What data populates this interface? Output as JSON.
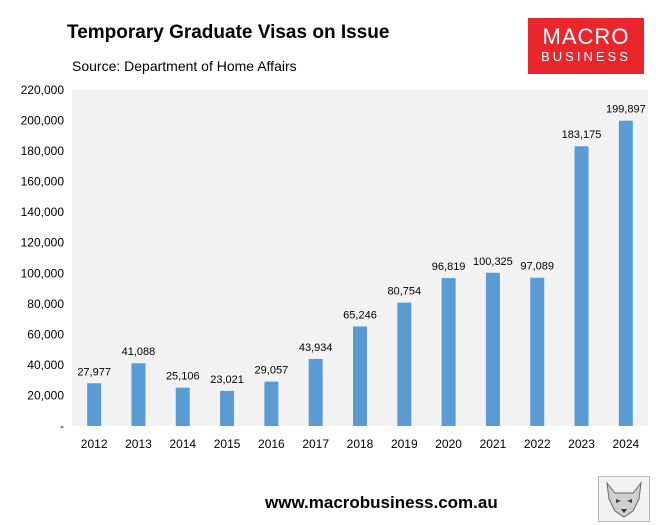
{
  "header": {
    "title": "Temporary Graduate Visas on Issue",
    "source": "Source: Department of Home Affairs"
  },
  "logo": {
    "line1": "MACRO",
    "line2": "BUSINESS",
    "color": "#e8262c"
  },
  "footer": {
    "url": "www.macrobusiness.com.au"
  },
  "chart_data": {
    "type": "bar",
    "categories": [
      "2012",
      "2013",
      "2014",
      "2015",
      "2016",
      "2017",
      "2018",
      "2019",
      "2020",
      "2021",
      "2022",
      "2023",
      "2024"
    ],
    "values": [
      27977,
      41088,
      25106,
      23021,
      29057,
      43934,
      65246,
      80754,
      96819,
      100325,
      97089,
      183175,
      199897
    ],
    "data_labels": [
      "27,977",
      "41,088",
      "25,106",
      "23,021",
      "29,057",
      "43,934",
      "65,246",
      "80,754",
      "96,819",
      "100,325",
      "97,089",
      "183,175",
      "199,897"
    ],
    "y_tick_labels": [
      "-",
      "20,000",
      "40,000",
      "60,000",
      "80,000",
      "100,000",
      "120,000",
      "140,000",
      "160,000",
      "180,000",
      "200,000",
      "220,000"
    ],
    "ylim": [
      0,
      220000
    ],
    "bar_color": "#5b9bd5",
    "plot_background": "#f2f2f2",
    "grid": false
  }
}
